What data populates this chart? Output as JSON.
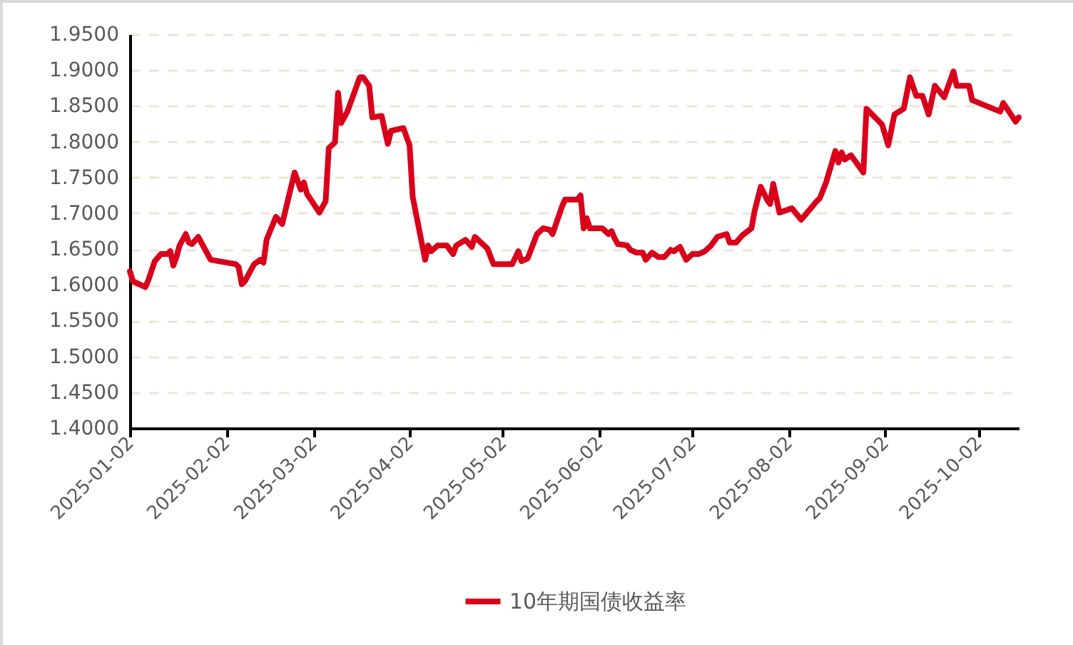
{
  "chart_data": {
    "type": "line",
    "x": [
      "2025-01-02",
      "2025-01-03",
      "2025-01-07",
      "2025-01-08",
      "2025-01-10",
      "2025-01-12",
      "2025-01-14",
      "2025-01-15",
      "2025-01-16",
      "2025-01-17",
      "2025-01-18",
      "2025-01-20",
      "2025-01-21",
      "2025-01-22",
      "2025-01-24",
      "2025-01-28",
      "2025-02-05",
      "2025-02-06",
      "2025-02-07",
      "2025-02-08",
      "2025-02-10",
      "2025-02-11",
      "2025-02-13",
      "2025-02-14",
      "2025-02-15",
      "2025-02-18",
      "2025-02-20",
      "2025-02-24",
      "2025-02-26",
      "2025-02-27",
      "2025-02-28",
      "2025-03-04",
      "2025-03-06",
      "2025-03-07",
      "2025-03-09",
      "2025-03-10",
      "2025-03-11",
      "2025-03-13",
      "2025-03-17",
      "2025-03-18",
      "2025-03-20",
      "2025-03-21",
      "2025-03-24",
      "2025-03-26",
      "2025-03-27",
      "2025-03-31",
      "2025-04-02",
      "2025-04-03",
      "2025-04-07",
      "2025-04-08",
      "2025-04-09",
      "2025-04-11",
      "2025-04-14",
      "2025-04-16",
      "2025-04-17",
      "2025-04-20",
      "2025-04-22",
      "2025-04-23",
      "2025-04-27",
      "2025-04-29",
      "2025-05-05",
      "2025-05-07",
      "2025-05-08",
      "2025-05-10",
      "2025-05-13",
      "2025-05-15",
      "2025-05-17",
      "2025-05-18",
      "2025-05-21",
      "2025-05-22",
      "2025-05-26",
      "2025-05-27",
      "2025-05-28",
      "2025-05-29",
      "2025-05-30",
      "2025-06-03",
      "2025-06-05",
      "2025-06-06",
      "2025-06-07",
      "2025-06-08",
      "2025-06-11",
      "2025-06-12",
      "2025-06-14",
      "2025-06-16",
      "2025-06-17",
      "2025-06-19",
      "2025-06-21",
      "2025-06-23",
      "2025-06-25",
      "2025-06-26",
      "2025-06-28",
      "2025-06-30",
      "2025-07-02",
      "2025-07-04",
      "2025-07-06",
      "2025-07-08",
      "2025-07-10",
      "2025-07-13",
      "2025-07-14",
      "2025-07-16",
      "2025-07-18",
      "2025-07-21",
      "2025-07-22",
      "2025-07-24",
      "2025-07-26",
      "2025-07-27",
      "2025-07-28",
      "2025-07-30",
      "2025-08-03",
      "2025-08-06",
      "2025-08-11",
      "2025-08-12",
      "2025-08-14",
      "2025-08-17",
      "2025-08-18",
      "2025-08-19",
      "2025-08-20",
      "2025-08-22",
      "2025-08-26",
      "2025-08-27",
      "2025-09-01",
      "2025-09-03",
      "2025-09-05",
      "2025-09-08",
      "2025-09-10",
      "2025-09-12",
      "2025-09-14",
      "2025-09-16",
      "2025-09-18",
      "2025-09-21",
      "2025-09-24",
      "2025-09-25",
      "2025-09-29",
      "2025-09-30",
      "2025-10-09",
      "2025-10-10",
      "2025-10-14",
      "2025-10-15"
    ],
    "series": [
      {
        "name": "10年期国债收益率",
        "color": "#d9001b",
        "values": [
          1.619,
          1.605,
          1.597,
          1.607,
          1.633,
          1.643,
          1.643,
          1.647,
          1.627,
          1.639,
          1.655,
          1.671,
          1.659,
          1.657,
          1.667,
          1.635,
          1.629,
          1.625,
          1.601,
          1.605,
          1.621,
          1.629,
          1.635,
          1.631,
          1.663,
          1.695,
          1.685,
          1.757,
          1.733,
          1.743,
          1.727,
          1.701,
          1.717,
          1.791,
          1.799,
          1.868,
          1.826,
          1.842,
          1.89,
          1.89,
          1.878,
          1.834,
          1.836,
          1.797,
          1.815,
          1.819,
          1.795,
          1.723,
          1.635,
          1.655,
          1.647,
          1.655,
          1.655,
          1.643,
          1.655,
          1.663,
          1.653,
          1.667,
          1.651,
          1.629,
          1.629,
          1.647,
          1.633,
          1.637,
          1.671,
          1.679,
          1.677,
          1.671,
          1.709,
          1.719,
          1.719,
          1.725,
          1.679,
          1.693,
          1.679,
          1.679,
          1.671,
          1.675,
          1.665,
          1.657,
          1.655,
          1.649,
          1.645,
          1.645,
          1.635,
          1.645,
          1.639,
          1.639,
          1.649,
          1.647,
          1.653,
          1.635,
          1.643,
          1.643,
          1.647,
          1.655,
          1.667,
          1.671,
          1.659,
          1.659,
          1.669,
          1.679,
          1.703,
          1.737,
          1.719,
          1.713,
          1.741,
          1.701,
          1.707,
          1.691,
          1.717,
          1.721,
          1.743,
          1.787,
          1.771,
          1.785,
          1.775,
          1.781,
          1.757,
          1.846,
          1.824,
          1.795,
          1.838,
          1.846,
          1.89,
          1.864,
          1.864,
          1.838,
          1.878,
          1.862,
          1.898,
          1.878,
          1.878,
          1.858,
          1.842,
          1.854,
          1.828,
          1.834
        ]
      }
    ],
    "xlim": [
      "2025-01-02",
      "2025-10-15"
    ],
    "xticks": [
      "2025-01-02",
      "2025-02-02",
      "2025-03-02",
      "2025-04-02",
      "2025-05-02",
      "2025-06-02",
      "2025-07-02",
      "2025-08-02",
      "2025-09-02",
      "2025-10-02"
    ],
    "ylim": [
      1.4,
      1.95
    ],
    "yticks": [
      {
        "value": 1.4,
        "label": "1.4000"
      },
      {
        "value": 1.45,
        "label": "1.4500"
      },
      {
        "value": 1.5,
        "label": "1.5000"
      },
      {
        "value": 1.55,
        "label": "1.5500"
      },
      {
        "value": 1.6,
        "label": "1.6000"
      },
      {
        "value": 1.65,
        "label": "1.6500"
      },
      {
        "value": 1.7,
        "label": "1.7000"
      },
      {
        "value": 1.75,
        "label": "1.7500"
      },
      {
        "value": 1.8,
        "label": "1.8000"
      },
      {
        "value": 1.85,
        "label": "1.8500"
      },
      {
        "value": 1.9,
        "label": "1.9000"
      },
      {
        "value": 1.95,
        "label": "1.9500"
      }
    ],
    "grid": "y",
    "legend": "bottom",
    "line_style": "solid",
    "marker": "none"
  }
}
